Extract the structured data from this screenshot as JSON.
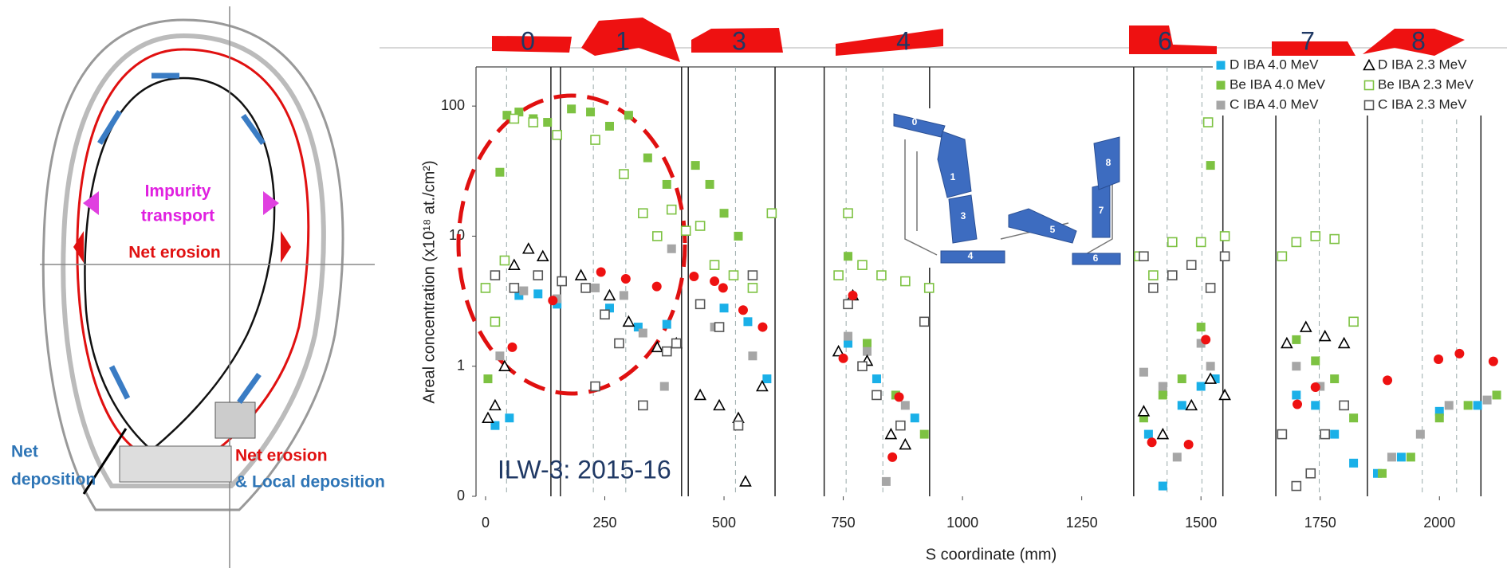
{
  "chart_data": {
    "type": "scatter",
    "xlabel": "S coordinate (mm)",
    "ylabel": "Areal concentration (x10¹⁸ at./cm²)",
    "xlim": [
      -20,
      2140
    ],
    "ylim": [
      0.1,
      200
    ],
    "log_y": true,
    "xticks": [
      0,
      250,
      500,
      750,
      1000,
      1250,
      1500,
      1750,
      2000
    ],
    "yticks": [
      {
        "value": 0.1,
        "label": "0"
      },
      1,
      10,
      100
    ],
    "boundaries": [
      137,
      157,
      411,
      425,
      607,
      710,
      931,
      1359,
      1546,
      1657,
      1849,
      2087
    ],
    "dashed_lines": [
      44,
      226,
      294,
      524,
      756,
      833,
      1429,
      1502,
      1748,
      1964,
      2036
    ],
    "annotation": "ILW-3: 2015-16",
    "tile_labels": [
      "0",
      "1",
      "3",
      "4",
      "6",
      "7",
      "8"
    ],
    "inset_labels": [
      "0",
      "1",
      "3",
      "4",
      "5",
      "6",
      "7",
      "8"
    ],
    "series": [
      {
        "name": "D IBA 4.0 MeV",
        "color": "#1ab0e8",
        "marker": "square",
        "filled": true,
        "x": [
          20,
          50,
          70,
          110,
          150,
          260,
          320,
          380,
          450,
          500,
          550,
          590,
          760,
          820,
          900,
          1390,
          1420,
          1460,
          1500,
          1530,
          1700,
          1740,
          1780,
          1820,
          1870,
          1920,
          2000,
          2080
        ],
        "values": [
          0.35,
          0.4,
          3.5,
          3.6,
          3.0,
          2.8,
          2.0,
          2.1,
          3.0,
          2.8,
          2.2,
          0.8,
          1.5,
          0.8,
          0.4,
          0.3,
          0.12,
          0.5,
          0.7,
          0.8,
          0.6,
          0.5,
          0.3,
          0.18,
          0.15,
          0.2,
          0.45,
          0.5
        ]
      },
      {
        "name": "Be IBA 4.0 MeV",
        "color": "#7dc242",
        "marker": "square",
        "filled": true,
        "x": [
          5,
          30,
          45,
          70,
          100,
          130,
          180,
          220,
          260,
          300,
          340,
          380,
          440,
          470,
          500,
          530,
          560,
          760,
          800,
          860,
          920,
          1380,
          1420,
          1460,
          1500,
          1520,
          1700,
          1740,
          1780,
          1820,
          1880,
          1940,
          2000,
          2060,
          2120
        ],
        "values": [
          0.8,
          31,
          85,
          90,
          80,
          75,
          95,
          90,
          70,
          85,
          40,
          25,
          35,
          25,
          15,
          10,
          5,
          7,
          1.5,
          0.6,
          0.3,
          0.4,
          0.6,
          0.8,
          2.0,
          35,
          1.6,
          1.1,
          0.8,
          0.4,
          0.15,
          0.2,
          0.4,
          0.5,
          0.6
        ]
      },
      {
        "name": "C IBA 4.0 MeV",
        "color": "#a6a6a6",
        "marker": "square",
        "filled": true,
        "x": [
          30,
          80,
          150,
          230,
          290,
          330,
          375,
          390,
          480,
          560,
          760,
          800,
          840,
          880,
          1380,
          1420,
          1450,
          1500,
          1520,
          1700,
          1750,
          1800,
          1900,
          1960,
          2020,
          2100
        ],
        "values": [
          1.2,
          3.8,
          3.3,
          4.0,
          3.5,
          1.8,
          0.7,
          8.0,
          2.0,
          1.2,
          1.7,
          1.3,
          0.13,
          0.5,
          0.9,
          0.7,
          0.2,
          1.5,
          1.0,
          1.0,
          0.7,
          0.5,
          0.2,
          0.3,
          0.5,
          0.55
        ]
      },
      {
        "name": "D IBA 2.3 MeV",
        "color": "#000000",
        "marker": "triangle",
        "filled": false,
        "x": [
          5,
          20,
          40,
          60,
          90,
          120,
          200,
          260,
          300,
          360,
          400,
          450,
          490,
          530,
          545,
          580,
          740,
          770,
          800,
          850,
          880,
          1380,
          1420,
          1480,
          1520,
          1550,
          1680,
          1720,
          1760,
          1800
        ],
        "values": [
          0.4,
          0.5,
          1.0,
          6,
          8,
          7,
          5,
          3.5,
          2.2,
          1.4,
          1.5,
          0.6,
          0.5,
          0.4,
          0.13,
          0.7,
          1.3,
          3.5,
          1.1,
          0.3,
          0.25,
          0.45,
          0.3,
          0.5,
          0.8,
          0.6,
          1.5,
          2.0,
          1.7,
          1.5
        ]
      },
      {
        "name": "Be IBA 2.3 MeV",
        "color": "#7dc242",
        "marker": "square",
        "filled": false,
        "x": [
          0,
          20,
          40,
          60,
          100,
          150,
          230,
          290,
          330,
          360,
          390,
          420,
          450,
          480,
          520,
          560,
          600,
          740,
          760,
          790,
          830,
          880,
          930,
          1370,
          1400,
          1440,
          1500,
          1515,
          1550,
          1670,
          1700,
          1740,
          1780,
          1820
        ],
        "values": [
          4,
          2.2,
          6.5,
          80,
          75,
          60,
          55,
          30,
          15,
          10,
          16,
          11,
          12,
          6,
          5,
          4,
          15,
          5,
          15,
          6,
          5,
          4.5,
          4,
          7,
          5,
          9,
          9,
          75,
          10,
          7,
          9,
          10,
          9.5,
          2.2
        ]
      },
      {
        "name": "C IBA 2.3 MeV",
        "color": "#555555",
        "marker": "square",
        "filled": false,
        "x": [
          20,
          60,
          110,
          160,
          210,
          250,
          280,
          330,
          380,
          400,
          230,
          450,
          490,
          530,
          560,
          760,
          790,
          820,
          870,
          920,
          1380,
          1400,
          1440,
          1480,
          1520,
          1550,
          1670,
          1700,
          1730,
          1760,
          1800
        ],
        "values": [
          5,
          4,
          5,
          4.5,
          4,
          2.5,
          1.5,
          0.5,
          1.3,
          1.5,
          0.7,
          3,
          2,
          0.35,
          5,
          3,
          1.0,
          0.6,
          0.35,
          2.2,
          7,
          4,
          5,
          6,
          4,
          7,
          0.3,
          0.12,
          0.15,
          0.3,
          0.5
        ]
      },
      {
        "color": "#ee1111",
        "marker": "circle",
        "filled": true,
        "x": [
          56,
          141,
          242,
          294,
          359,
          437,
          480,
          498,
          540,
          581,
          750,
          770,
          853,
          867,
          1397,
          1474,
          1510,
          1702,
          1740,
          1891,
          1998,
          2042,
          2113
        ],
        "values": [
          1.4,
          3.2,
          5.3,
          4.7,
          4.1,
          4.9,
          4.5,
          4.0,
          2.7,
          2.0,
          1.15,
          3.5,
          0.2,
          0.58,
          0.26,
          0.25,
          1.6,
          0.51,
          0.69,
          0.78,
          1.13,
          1.25,
          1.09
        ]
      }
    ]
  },
  "diagram": {
    "impurity": [
      "Impurity",
      "transport"
    ],
    "net_erosion_top": "Net erosion",
    "net_deposition": [
      "Net",
      "deposition"
    ],
    "net_erosion_bottom": "Net erosion",
    "local_deposition": "& Local deposition"
  }
}
